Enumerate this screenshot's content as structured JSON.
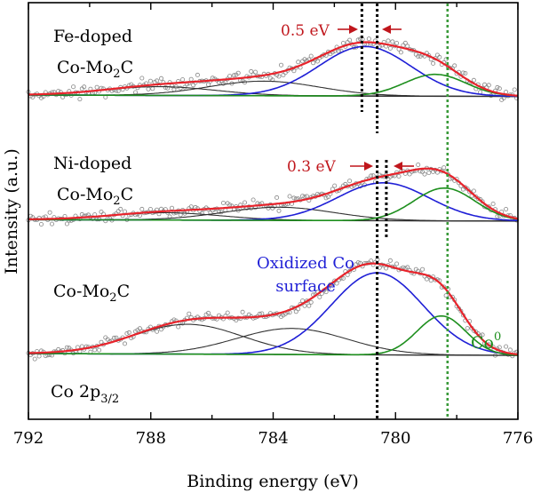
{
  "chart_data": {
    "type": "line",
    "xlabel": "Binding energy (eV)",
    "ylabel": "Intensity (a.u.)",
    "xlim": [
      792,
      776
    ],
    "x_reversed": true,
    "x_ticks": [
      792,
      788,
      784,
      780,
      776
    ],
    "y_ticks_shown": false,
    "grid": false,
    "samples": [
      {
        "label": "Fe-doped",
        "label2_base": "Co-Mo",
        "label2_sub": "2",
        "label2_tail": "C",
        "shift_label": "0.5 eV",
        "baseline": [
          0.22,
          0.2
        ],
        "components": [
          {
            "center": 787.7,
            "width": 1.8,
            "height": 0.12
          },
          {
            "center": 784.3,
            "width": 1.8,
            "height": 0.2
          },
          {
            "center": 781.0,
            "width": 1.5,
            "height": 0.68
          },
          {
            "center": 778.7,
            "width": 1.0,
            "height": 0.3
          }
        ],
        "shift_lines": [
          781.1,
          780.6
        ]
      },
      {
        "label": "Ni-doped",
        "label2_base": "Co-Mo",
        "label2_sub": "2",
        "label2_tail": "C",
        "shift_label": "0.3 eV",
        "baseline": [
          0.18,
          0.16
        ],
        "components": [
          {
            "center": 787.5,
            "width": 1.8,
            "height": 0.1
          },
          {
            "center": 783.8,
            "width": 1.8,
            "height": 0.18
          },
          {
            "center": 780.4,
            "width": 1.5,
            "height": 0.52
          },
          {
            "center": 778.4,
            "width": 1.0,
            "height": 0.45
          }
        ],
        "shift_lines": [
          780.6,
          780.3
        ]
      },
      {
        "label": "",
        "label2_base": "Co-Mo",
        "label2_sub": "2",
        "label2_tail": "C",
        "shift_label": "",
        "baseline": [
          0.4,
          0.38
        ],
        "components": [
          {
            "center": 786.8,
            "width": 1.8,
            "height": 0.32
          },
          {
            "center": 783.4,
            "width": 1.8,
            "height": 0.28
          },
          {
            "center": 780.6,
            "width": 1.5,
            "height": 0.88
          },
          {
            "center": 778.5,
            "width": 0.8,
            "height": 0.42
          }
        ],
        "shift_lines": []
      }
    ],
    "reference_line": 778.3,
    "annotations": {
      "oxidized_line1": "Oxidized Co",
      "oxidized_line2": "surface",
      "co0_base": "Co",
      "co0_sup": "0",
      "core_level_base": "Co 2p",
      "core_level_sub": "3/2"
    },
    "colors": {
      "data_points": "#888888",
      "envelope": "#e8232b",
      "baseline": "#1a1a1a",
      "satellite": "#333333",
      "oxidized": "#1f1fd6",
      "metallic": "#1e8f1e",
      "arrow": "#c0161c",
      "reference": "#3a9a3a"
    }
  }
}
